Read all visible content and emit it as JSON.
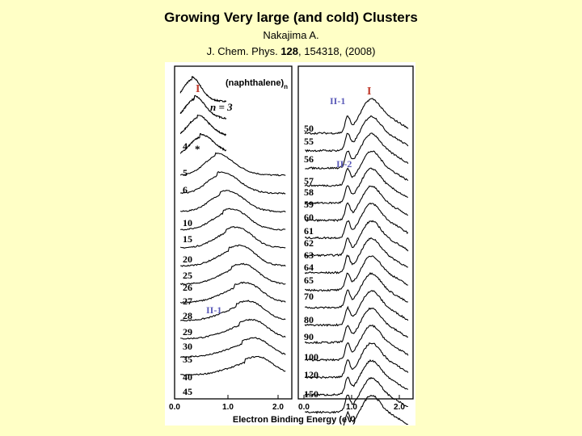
{
  "header": {
    "title": "Growing Very large (and cold) Clusters",
    "author": "Nakajima A.",
    "citation_journal": "J. Chem. Phys. ",
    "citation_volume": "128",
    "citation_rest": ", 154318, (2008)"
  },
  "figure": {
    "species_label": "(naphthalene)",
    "species_subscript": "n",
    "n_label": "n = 3",
    "peak_I": "I",
    "peak_II1": "II-1",
    "peak_II2": "II-2",
    "star": "*",
    "xlabel": "Electron Binding Energy (eV)",
    "left_ticks": [
      "0.0",
      "1.0",
      "2.0"
    ],
    "right_ticks": [
      "0.0",
      "1.0",
      "2.0"
    ],
    "left_sizes": [
      "4",
      "5",
      "6",
      "10",
      "15",
      "20",
      "25",
      "26",
      "27",
      "28",
      "29",
      "30",
      "35",
      "40",
      "45"
    ],
    "right_sizes": [
      "50",
      "55",
      "56",
      "57",
      "58",
      "59",
      "60",
      "61",
      "62",
      "63",
      "64",
      "65",
      "70",
      "80",
      "90",
      "100",
      "120",
      "150"
    ],
    "colors": {
      "peak_I": "#c0392b",
      "peak_II": "#5a5ab8"
    }
  }
}
